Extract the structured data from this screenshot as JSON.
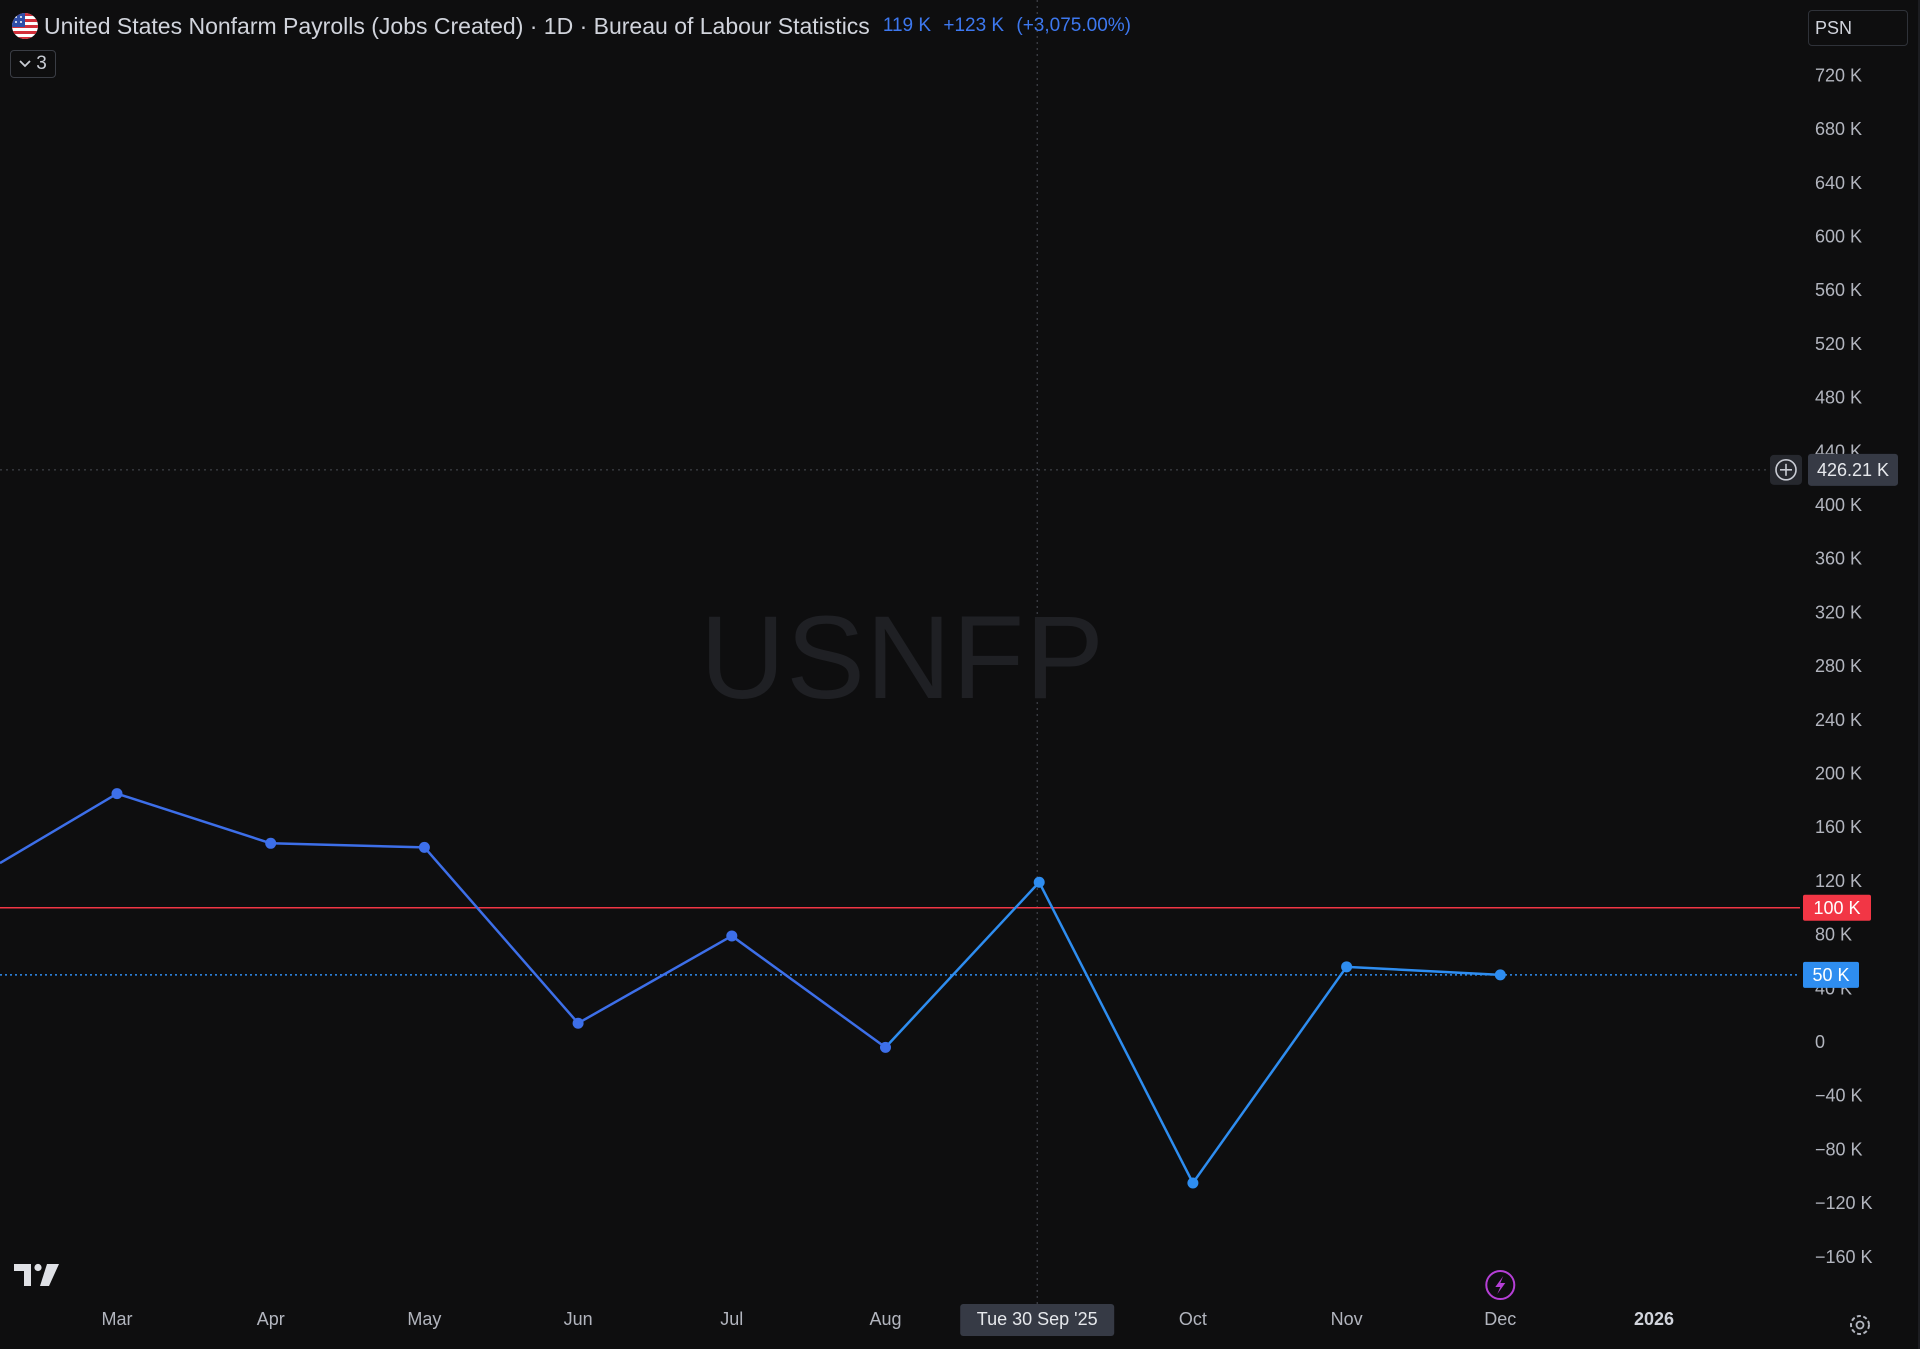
{
  "header": {
    "title": "United States Nonfarm Payrolls (Jobs Created) · 1D · Bureau of Labour Statistics",
    "value": "119 K",
    "change": "+123 K",
    "change_pct": "(+3,075.00%)",
    "value_color": "#3d78f0"
  },
  "legend_toggle": {
    "count": "3",
    "icon": "chevron-down-icon"
  },
  "psn_field": {
    "value": "PSN"
  },
  "watermark": {
    "text": "USNFP"
  },
  "crosshair": {
    "date_label": "Tue 30 Sep '25",
    "price_label": "426.21 K",
    "price_value": 426.21,
    "icon": "add-circle-icon"
  },
  "levels": [
    {
      "name": "red-level",
      "value": 100,
      "label": "100 K",
      "color": "#f23645"
    },
    {
      "name": "blue-level",
      "value": 50,
      "label": "50 K",
      "color": "#2e8df0"
    }
  ],
  "bottom": {
    "lightning_icon": "lightning-icon",
    "settings_icon": "gear-icon",
    "logo": "tradingview-logo"
  },
  "chart_data": {
    "type": "line",
    "title": "United States Nonfarm Payrolls (Jobs Created)",
    "unit": "K",
    "ylim": [
      -180,
      750
    ],
    "y_ticks": [
      720,
      680,
      640,
      600,
      560,
      520,
      480,
      440,
      400,
      360,
      320,
      280,
      240,
      200,
      160,
      120,
      80,
      40,
      0,
      -40,
      -80,
      -120,
      -160
    ],
    "y_tick_labels": [
      "720 K",
      "680 K",
      "640 K",
      "600 K",
      "560 K",
      "520 K",
      "480 K",
      "440 K",
      "400 K",
      "360 K",
      "320 K",
      "280 K",
      "240 K",
      "200 K",
      "160 K",
      "120 K",
      "80 K",
      "40 K",
      "0",
      "−40 K",
      "−80 K",
      "−120 K",
      "−160 K"
    ],
    "x_ticks": [
      "Mar",
      "Apr",
      "May",
      "Jun",
      "Jul",
      "Aug",
      "Oct",
      "Nov",
      "Dec",
      "2026"
    ],
    "categories": [
      "Mar",
      "Apr",
      "May",
      "Jun",
      "Jul",
      "Aug",
      "Sep",
      "Oct",
      "Nov",
      "Dec"
    ],
    "series": [
      {
        "values": [
          185,
          148,
          145,
          14,
          79,
          -4,
          119,
          -105,
          56,
          50
        ]
      }
    ],
    "leading_value": 120,
    "grid": false,
    "line_colors": [
      "#3d6fe9",
      "#2e8df0"
    ],
    "background": "#0e0e0f"
  }
}
